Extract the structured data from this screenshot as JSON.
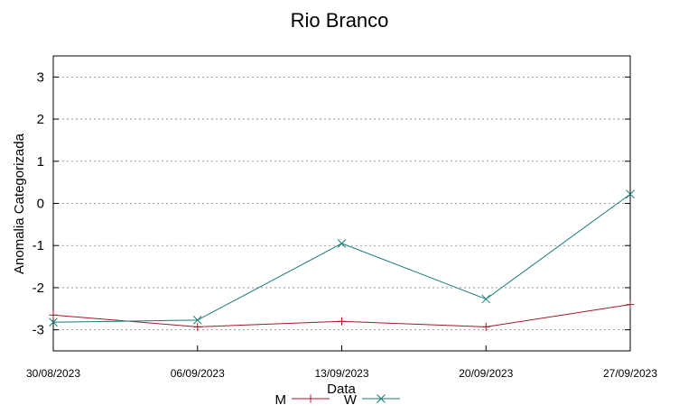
{
  "chart_data": {
    "type": "line",
    "title": "Rio Branco",
    "xlabel": "Data",
    "ylabel": "Anomalia Categorizada",
    "categories": [
      "30/08/2023",
      "06/09/2023",
      "13/09/2023",
      "20/09/2023",
      "27/09/2023"
    ],
    "yticks": [
      -3,
      -2,
      -1,
      0,
      1,
      2,
      3
    ],
    "ylim": [
      -3.5,
      3.5
    ],
    "grid": true,
    "legend_position": "bottom-center",
    "series": [
      {
        "name": "M",
        "values": [
          -2.65,
          -2.93,
          -2.8,
          -2.93,
          -2.4
        ],
        "color": "#a0192a",
        "marker": "plus"
      },
      {
        "name": "W",
        "values": [
          -2.82,
          -2.77,
          -0.95,
          -2.27,
          0.22
        ],
        "color": "#1a7a7a",
        "marker": "cross"
      }
    ]
  }
}
